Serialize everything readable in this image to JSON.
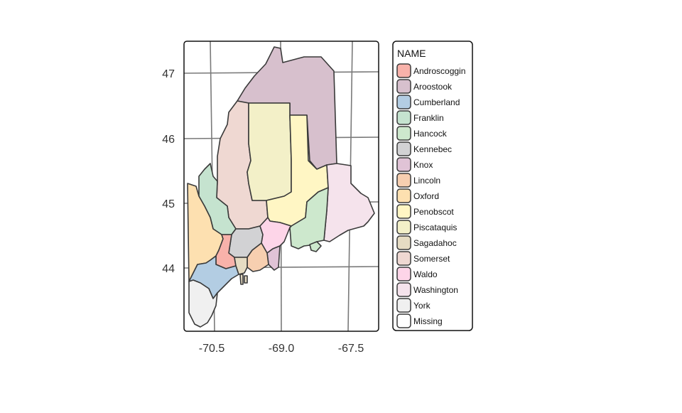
{
  "map": {
    "legend": {
      "title": "NAME",
      "entries": [
        {
          "label": "Androscoggin",
          "color": "#f8b2aa"
        },
        {
          "label": "Aroostook",
          "color": "#d7c0cd"
        },
        {
          "label": "Cumberland",
          "color": "#b3cde3"
        },
        {
          "label": "Franklin",
          "color": "#c5e3cf"
        },
        {
          "label": "Hancock",
          "color": "#cde8cd"
        },
        {
          "label": "Kennebec",
          "color": "#d2d2d4"
        },
        {
          "label": "Knox",
          "color": "#e0c3d6"
        },
        {
          "label": "Lincoln",
          "color": "#f7cfb0"
        },
        {
          "label": "Oxford",
          "color": "#fde0b0"
        },
        {
          "label": "Penobscot",
          "color": "#fff6c4"
        },
        {
          "label": "Piscataquis",
          "color": "#f3f0c8"
        },
        {
          "label": "Sagadahoc",
          "color": "#e6dcc3"
        },
        {
          "label": "Somerset",
          "color": "#efd8d2"
        },
        {
          "label": "Waldo",
          "color": "#fdd5e8"
        },
        {
          "label": "Washington",
          "color": "#f5e3ec"
        },
        {
          "label": "York",
          "color": "#f0f0f0"
        },
        {
          "label": "Missing",
          "color": "#ffffff"
        }
      ]
    },
    "x_ticks": [
      "-70.5",
      "-69.0",
      "-67.5"
    ],
    "y_ticks": [
      "47",
      "46",
      "45",
      "44"
    ]
  }
}
